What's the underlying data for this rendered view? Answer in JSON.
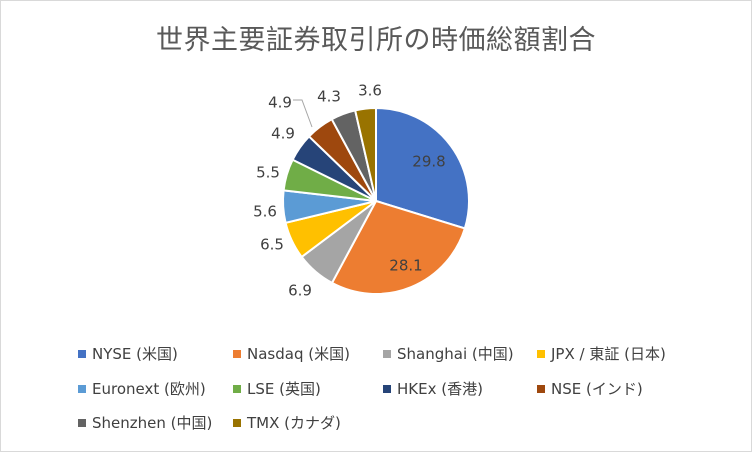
{
  "chart_data": {
    "type": "pie",
    "title": "世界主要証券取引所の時価総額割合",
    "categories": [
      "NYSE (米国)",
      "Nasdaq (米国)",
      "Shanghai (中国)",
      "JPX / 東証 (日本)",
      "Euronext (欧州)",
      "LSE (英国)",
      "HKEx (香港)",
      "NSE (インド)",
      "Shenzhen (中国)",
      "TMX (カナダ)"
    ],
    "values": [
      29.8,
      28.1,
      6.9,
      6.5,
      5.6,
      5.5,
      4.9,
      4.9,
      4.3,
      3.6
    ],
    "colors": [
      "#4472C4",
      "#ED7D31",
      "#A5A5A5",
      "#FFC000",
      "#5B9BD5",
      "#70AD47",
      "#264478",
      "#9E480E",
      "#636363",
      "#997300"
    ],
    "legend_position": "bottom"
  }
}
